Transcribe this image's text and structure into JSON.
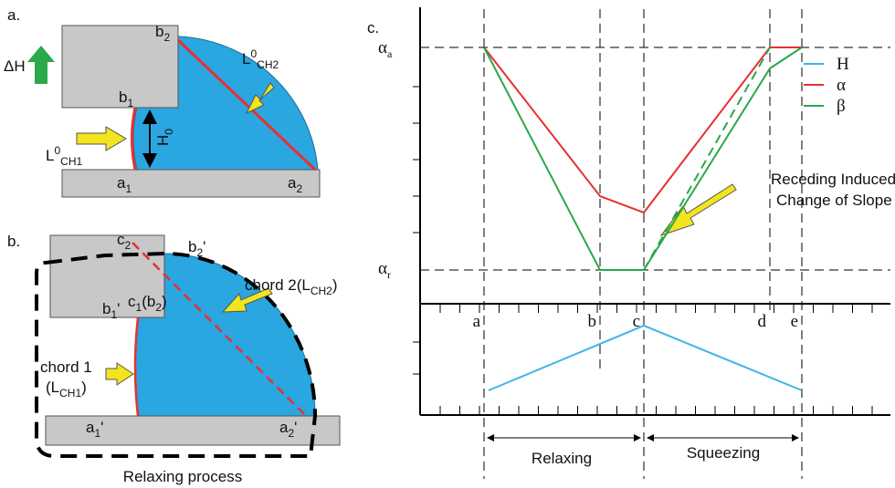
{
  "panel_a": {
    "label": "a.",
    "delta_h": "ΔH",
    "b2": {
      "base": "b",
      "sub": "2"
    },
    "b1": {
      "base": "b",
      "sub": "1"
    },
    "a1": {
      "base": "a",
      "sub": "1"
    },
    "a2": {
      "base": "a",
      "sub": "2"
    },
    "h0": {
      "base": "H",
      "sub": "0"
    },
    "l_ch1": {
      "base": "L",
      "sup": "0",
      "sub": "CH1"
    },
    "l_ch2": {
      "base": "L",
      "sup": "0",
      "sub": "CH2"
    }
  },
  "panel_b": {
    "label": "b.",
    "c2": {
      "base": "c",
      "sub": "2"
    },
    "b2_prime": {
      "base": "b",
      "sub": "2",
      "end": "'"
    },
    "b1_prime": {
      "base": "b",
      "sub": "1",
      "end": "'"
    },
    "c1_b2": {
      "t1": "c",
      "s1": "1",
      "t2": "(b",
      "s2": "2",
      "t3": ")"
    },
    "chord2": {
      "t1": "chord 2(L",
      "s1": "CH2",
      "t2": ")"
    },
    "chord1_line1": "chord 1",
    "chord1_line2": {
      "t1": "(L",
      "s1": "CH1",
      "t2": ")"
    },
    "a1_prime": {
      "base": "a",
      "sub": "1",
      "end": "'"
    },
    "a2_prime": {
      "base": "a",
      "sub": "2",
      "end": "'"
    },
    "caption": "Relaxing process"
  },
  "panel_c": {
    "label": "c.",
    "alpha_a": {
      "base": "α",
      "sub": "a"
    },
    "alpha_r": {
      "base": "α",
      "sub": "r"
    },
    "points": [
      "a",
      "b",
      "c",
      "d",
      "e"
    ],
    "legend": [
      {
        "name": "H",
        "color": "#3cb4e6"
      },
      {
        "name": "α",
        "color": "#e8302f"
      },
      {
        "name": "β",
        "color": "#2aa84a"
      }
    ],
    "annotation": [
      "Receding Induced",
      "Change of Slope"
    ],
    "phases": [
      "Relaxing",
      "Squeezing"
    ]
  }
}
